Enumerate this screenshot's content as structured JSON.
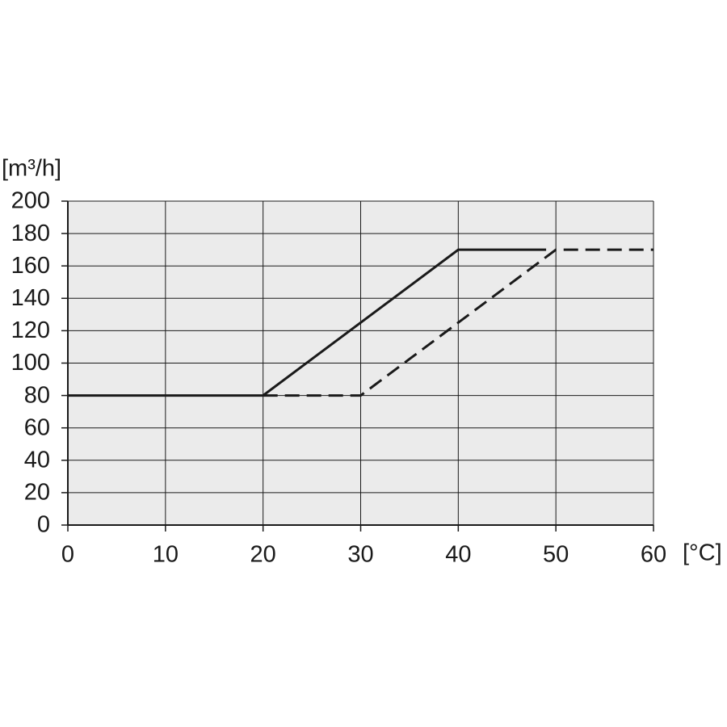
{
  "chart_data": {
    "type": "line",
    "y_label": "[m³/h]",
    "x_label": "[°C]",
    "xlim": [
      0,
      60
    ],
    "xticks": [
      0,
      10,
      20,
      30,
      40,
      50,
      60
    ],
    "ylim": [
      0,
      200
    ],
    "yticks": [
      0,
      20,
      40,
      60,
      80,
      100,
      120,
      140,
      160,
      180,
      200
    ],
    "grid": true,
    "background": "#ebebeb",
    "series": [
      {
        "color": "#1a1a1a",
        "linestyle": "solid",
        "x": [
          0,
          20,
          40,
          49
        ],
        "values": [
          80,
          80,
          170,
          170
        ]
      },
      {
        "color": "#1a1a1a",
        "linestyle": "dashed",
        "x": [
          20,
          30,
          50,
          60
        ],
        "values": [
          80,
          80,
          170,
          170
        ]
      }
    ]
  }
}
